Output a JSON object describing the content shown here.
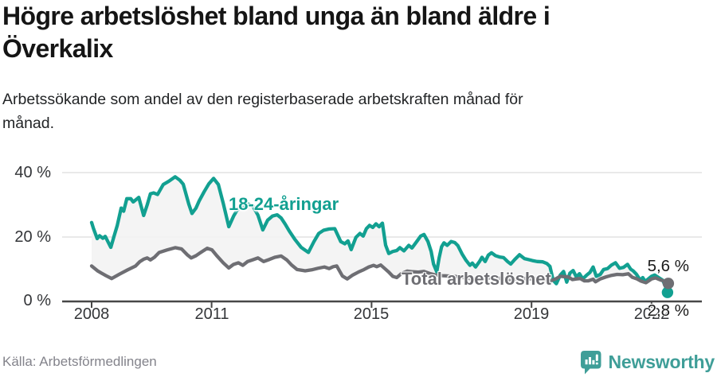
{
  "header": {
    "title": "Högre arbetslöshet bland unga än bland äldre i\nÖverkalix",
    "subtitle": "Arbetssökande som andel av den registerbaserade arbetskraften månad för\nmånad."
  },
  "footer": {
    "source": "Källa: Arbetsförmedlingen",
    "brand_name": "Newsworthy",
    "brand_icon": "newsworthy-speech-bubble-bar-chart-icon"
  },
  "colors": {
    "young_line": "#12A091",
    "total_line": "#6E6E73",
    "band_fill": "#f3f3f3",
    "gridline": "#dcdcdc",
    "axis": "#474747",
    "brand_teal": "#3F9E98",
    "label_text": "#1a1a1a"
  },
  "chart_data": {
    "type": "line",
    "x_tick_labels": [
      "2008",
      "2011",
      "2015",
      "2019",
      "2022"
    ],
    "x_ticks": [
      2008,
      2011,
      2015,
      2019,
      2022
    ],
    "y_tick_labels": [
      "0 %",
      "20 %",
      "40 %"
    ],
    "y_ticks": [
      0,
      20,
      40
    ],
    "xlim": [
      2007.4,
      2023.2
    ],
    "ylim": [
      0,
      45
    ],
    "grid": "horizontal",
    "unit": "percent",
    "series": [
      {
        "name": "18-24-åringar",
        "color": "#12A091",
        "end_label": "2,8 %",
        "end_value": 2.8,
        "points": [
          [
            2008.0,
            24.5
          ],
          [
            2008.04,
            22.9
          ],
          [
            2008.14,
            19.5
          ],
          [
            2008.2,
            20.4
          ],
          [
            2008.28,
            19.6
          ],
          [
            2008.34,
            20.2
          ],
          [
            2008.48,
            16.8
          ],
          [
            2008.56,
            20.2
          ],
          [
            2008.64,
            23.5
          ],
          [
            2008.74,
            29.0
          ],
          [
            2008.8,
            28.0
          ],
          [
            2008.88,
            31.9
          ],
          [
            2008.98,
            31.9
          ],
          [
            2009.04,
            30.9
          ],
          [
            2009.18,
            32.3
          ],
          [
            2009.3,
            26.7
          ],
          [
            2009.39,
            30.0
          ],
          [
            2009.47,
            33.4
          ],
          [
            2009.55,
            33.7
          ],
          [
            2009.65,
            33.2
          ],
          [
            2009.79,
            36.3
          ],
          [
            2009.93,
            37.3
          ],
          [
            2010.09,
            38.7
          ],
          [
            2010.21,
            37.6
          ],
          [
            2010.29,
            36.4
          ],
          [
            2010.43,
            30.2
          ],
          [
            2010.51,
            27.3
          ],
          [
            2010.61,
            29.0
          ],
          [
            2010.69,
            31.2
          ],
          [
            2010.81,
            34.0
          ],
          [
            2010.93,
            36.5
          ],
          [
            2011.05,
            38.2
          ],
          [
            2011.17,
            36.3
          ],
          [
            2011.29,
            30.5
          ],
          [
            2011.43,
            23.2
          ],
          [
            2011.55,
            26.5
          ],
          [
            2011.65,
            28.6
          ],
          [
            2011.78,
            29.6
          ],
          [
            2011.92,
            30.2
          ],
          [
            2012.04,
            29.4
          ],
          [
            2012.16,
            26.8
          ],
          [
            2012.28,
            22.2
          ],
          [
            2012.4,
            25.2
          ],
          [
            2012.52,
            26.5
          ],
          [
            2012.64,
            26.9
          ],
          [
            2012.74,
            25.9
          ],
          [
            2012.84,
            24.0
          ],
          [
            2012.94,
            21.9
          ],
          [
            2013.08,
            19.3
          ],
          [
            2013.24,
            16.8
          ],
          [
            2013.42,
            15.2
          ],
          [
            2013.56,
            18.6
          ],
          [
            2013.68,
            21.1
          ],
          [
            2013.8,
            22.1
          ],
          [
            2013.94,
            22.5
          ],
          [
            2014.08,
            22.6
          ],
          [
            2014.23,
            18.6
          ],
          [
            2014.33,
            17.9
          ],
          [
            2014.41,
            18.8
          ],
          [
            2014.49,
            16.1
          ],
          [
            2014.61,
            19.9
          ],
          [
            2014.71,
            21.1
          ],
          [
            2014.79,
            20.3
          ],
          [
            2014.87,
            22.6
          ],
          [
            2014.95,
            23.6
          ],
          [
            2015.03,
            23.0
          ],
          [
            2015.11,
            24.1
          ],
          [
            2015.19,
            23.2
          ],
          [
            2015.27,
            24.3
          ],
          [
            2015.35,
            17.5
          ],
          [
            2015.43,
            14.9
          ],
          [
            2015.53,
            15.5
          ],
          [
            2015.63,
            15.8
          ],
          [
            2015.71,
            16.7
          ],
          [
            2015.81,
            15.7
          ],
          [
            2015.93,
            17.4
          ],
          [
            2016.01,
            16.6
          ],
          [
            2016.13,
            18.6
          ],
          [
            2016.23,
            20.3
          ],
          [
            2016.31,
            20.8
          ],
          [
            2016.41,
            18.6
          ],
          [
            2016.49,
            15.5
          ],
          [
            2016.55,
            11.6
          ],
          [
            2016.63,
            9.2
          ],
          [
            2016.69,
            13.5
          ],
          [
            2016.75,
            17.0
          ],
          [
            2016.81,
            18.2
          ],
          [
            2016.89,
            17.4
          ],
          [
            2016.99,
            18.6
          ],
          [
            2017.08,
            18.3
          ],
          [
            2017.16,
            17.3
          ],
          [
            2017.26,
            14.8
          ],
          [
            2017.36,
            12.8
          ],
          [
            2017.46,
            11.2
          ],
          [
            2017.52,
            11.9
          ],
          [
            2017.6,
            10.7
          ],
          [
            2017.7,
            12.4
          ],
          [
            2017.76,
            13.7
          ],
          [
            2017.84,
            12.4
          ],
          [
            2017.92,
            14.4
          ],
          [
            2018.0,
            15.1
          ],
          [
            2018.1,
            14.2
          ],
          [
            2018.2,
            13.8
          ],
          [
            2018.3,
            13.6
          ],
          [
            2018.4,
            12.4
          ],
          [
            2018.48,
            11.6
          ],
          [
            2018.58,
            13.0
          ],
          [
            2018.7,
            14.5
          ],
          [
            2018.82,
            13.3
          ],
          [
            2018.92,
            13.0
          ],
          [
            2019.02,
            12.7
          ],
          [
            2019.14,
            12.4
          ],
          [
            2019.28,
            12.3
          ],
          [
            2019.38,
            11.8
          ],
          [
            2019.46,
            10.9
          ],
          [
            2019.54,
            6.6
          ],
          [
            2019.62,
            5.5
          ],
          [
            2019.72,
            8.2
          ],
          [
            2019.8,
            9.3
          ],
          [
            2019.88,
            6.0
          ],
          [
            2019.96,
            8.8
          ],
          [
            2020.04,
            9.6
          ],
          [
            2020.12,
            7.6
          ],
          [
            2020.2,
            8.6
          ],
          [
            2020.28,
            7.0
          ],
          [
            2020.38,
            8.2
          ],
          [
            2020.46,
            9.0
          ],
          [
            2020.54,
            10.7
          ],
          [
            2020.62,
            7.8
          ],
          [
            2020.72,
            8.4
          ],
          [
            2020.8,
            9.9
          ],
          [
            2020.9,
            10.2
          ],
          [
            2021.0,
            11.3
          ],
          [
            2021.1,
            12.0
          ],
          [
            2021.2,
            10.3
          ],
          [
            2021.3,
            10.6
          ],
          [
            2021.4,
            11.5
          ],
          [
            2021.48,
            10.0
          ],
          [
            2021.54,
            9.5
          ],
          [
            2021.62,
            8.5
          ],
          [
            2021.72,
            6.6
          ],
          [
            2021.78,
            7.4
          ],
          [
            2021.84,
            6.2
          ],
          [
            2021.92,
            7.0
          ],
          [
            2022.0,
            7.8
          ],
          [
            2022.08,
            8.2
          ],
          [
            2022.18,
            7.4
          ],
          [
            2022.28,
            6.6
          ],
          [
            2022.34,
            4.9
          ],
          [
            2022.4,
            2.8
          ]
        ]
      },
      {
        "name": "Total arbetslöshet",
        "color": "#6E6E73",
        "end_label": "5,6 %",
        "end_value": 5.6,
        "points": [
          [
            2008.0,
            11.0
          ],
          [
            2008.16,
            9.4
          ],
          [
            2008.36,
            8.0
          ],
          [
            2008.5,
            7.1
          ],
          [
            2008.7,
            8.5
          ],
          [
            2008.9,
            9.8
          ],
          [
            2009.1,
            11.0
          ],
          [
            2009.2,
            12.3
          ],
          [
            2009.3,
            13.1
          ],
          [
            2009.39,
            13.5
          ],
          [
            2009.47,
            12.9
          ],
          [
            2009.57,
            13.7
          ],
          [
            2009.69,
            15.2
          ],
          [
            2009.89,
            16.0
          ],
          [
            2010.09,
            16.7
          ],
          [
            2010.25,
            16.3
          ],
          [
            2010.39,
            14.5
          ],
          [
            2010.49,
            13.5
          ],
          [
            2010.61,
            14.2
          ],
          [
            2010.73,
            15.2
          ],
          [
            2010.89,
            16.5
          ],
          [
            2011.01,
            16.0
          ],
          [
            2011.13,
            14.2
          ],
          [
            2011.29,
            12.0
          ],
          [
            2011.43,
            10.4
          ],
          [
            2011.55,
            11.5
          ],
          [
            2011.67,
            12.0
          ],
          [
            2011.78,
            11.2
          ],
          [
            2011.9,
            12.4
          ],
          [
            2012.02,
            12.9
          ],
          [
            2012.16,
            13.5
          ],
          [
            2012.3,
            12.4
          ],
          [
            2012.44,
            13.0
          ],
          [
            2012.58,
            13.7
          ],
          [
            2012.74,
            14.1
          ],
          [
            2012.88,
            12.9
          ],
          [
            2013.0,
            11.3
          ],
          [
            2013.14,
            9.9
          ],
          [
            2013.34,
            9.5
          ],
          [
            2013.5,
            9.8
          ],
          [
            2013.66,
            10.3
          ],
          [
            2013.82,
            10.7
          ],
          [
            2013.94,
            10.2
          ],
          [
            2014.04,
            10.8
          ],
          [
            2014.13,
            11.0
          ],
          [
            2014.27,
            7.9
          ],
          [
            2014.39,
            7.0
          ],
          [
            2014.53,
            8.2
          ],
          [
            2014.67,
            9.1
          ],
          [
            2014.81,
            9.9
          ],
          [
            2014.93,
            10.7
          ],
          [
            2015.05,
            11.2
          ],
          [
            2015.13,
            10.8
          ],
          [
            2015.23,
            11.3
          ],
          [
            2015.33,
            10.2
          ],
          [
            2015.43,
            9.1
          ],
          [
            2015.53,
            7.8
          ],
          [
            2015.63,
            7.4
          ],
          [
            2015.75,
            8.7
          ],
          [
            2015.89,
            9.4
          ],
          [
            2016.03,
            9.2
          ],
          [
            2016.17,
            9.1
          ],
          [
            2016.31,
            9.3
          ],
          [
            2016.45,
            8.7
          ],
          [
            2016.61,
            8.2
          ],
          [
            2016.77,
            8.0
          ],
          [
            2016.93,
            7.9
          ],
          [
            2017.06,
            7.8
          ],
          [
            2017.26,
            7.5
          ],
          [
            2017.46,
            7.1
          ],
          [
            2017.66,
            7.0
          ],
          [
            2017.86,
            7.2
          ],
          [
            2018.06,
            7.4
          ],
          [
            2018.26,
            7.1
          ],
          [
            2018.46,
            6.8
          ],
          [
            2018.66,
            7.0
          ],
          [
            2018.86,
            7.1
          ],
          [
            2019.06,
            7.0
          ],
          [
            2019.26,
            7.1
          ],
          [
            2019.46,
            6.3
          ],
          [
            2019.6,
            7.0
          ],
          [
            2019.72,
            7.8
          ],
          [
            2019.82,
            7.7
          ],
          [
            2019.92,
            7.6
          ],
          [
            2020.02,
            6.8
          ],
          [
            2020.12,
            7.0
          ],
          [
            2020.22,
            7.1
          ],
          [
            2020.32,
            6.4
          ],
          [
            2020.42,
            6.4
          ],
          [
            2020.54,
            6.9
          ],
          [
            2020.6,
            6.1
          ],
          [
            2020.72,
            7.0
          ],
          [
            2020.86,
            7.6
          ],
          [
            2021.0,
            8.1
          ],
          [
            2021.14,
            8.4
          ],
          [
            2021.28,
            8.3
          ],
          [
            2021.42,
            8.6
          ],
          [
            2021.52,
            7.5
          ],
          [
            2021.64,
            7.0
          ],
          [
            2021.74,
            6.3
          ],
          [
            2021.86,
            5.8
          ],
          [
            2022.0,
            7.0
          ],
          [
            2022.1,
            7.3
          ],
          [
            2022.22,
            6.7
          ],
          [
            2022.32,
            6.3
          ],
          [
            2022.42,
            5.6
          ]
        ]
      }
    ]
  }
}
